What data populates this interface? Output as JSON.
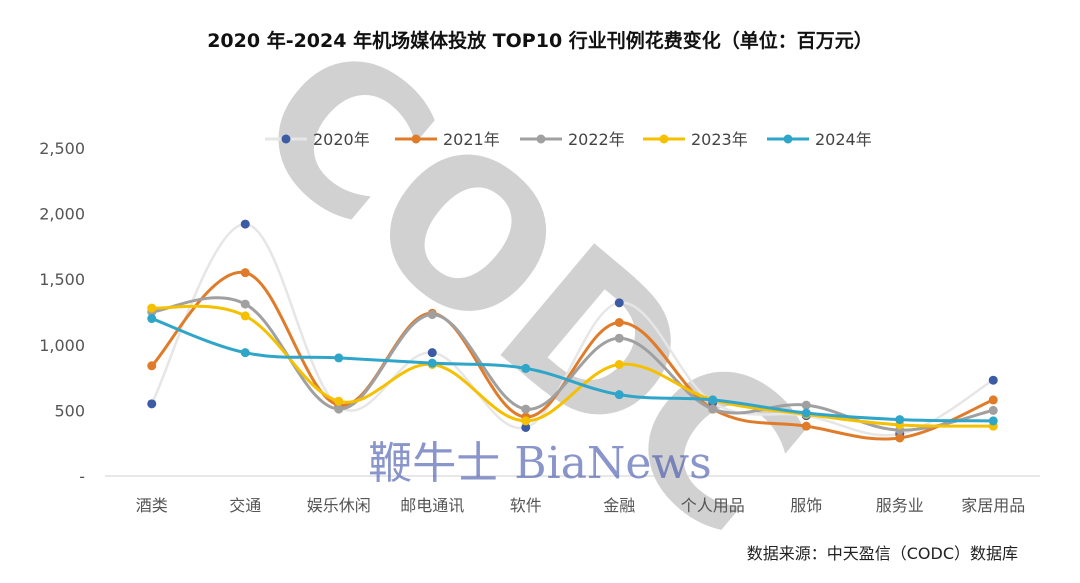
{
  "chart_title": "2020 年-2024 年机场媒体投放 TOP10 行业刊例花费变化（单位：百万元）",
  "source_note": "数据来源：中天盈信（CODC）数据库",
  "watermarks": {
    "codc": "CODC",
    "bianews": "鞭牛士 BiaNews"
  },
  "chart_data": {
    "type": "line",
    "title": "2020 年-2024 年机场媒体投放 TOP10 行业刊例花费变化（单位：百万元）",
    "xlabel": "",
    "ylabel": "",
    "ylim": [
      0,
      2500
    ],
    "y_ticks": [
      {
        "value": 0,
        "label": "-"
      },
      {
        "value": 500,
        "label": "500"
      },
      {
        "value": 1000,
        "label": "1,000"
      },
      {
        "value": 1500,
        "label": "1,500"
      },
      {
        "value": 2000,
        "label": "2,000"
      },
      {
        "value": 2500,
        "label": "2,500"
      }
    ],
    "grid": false,
    "legend_position": "top",
    "categories": [
      "酒类",
      "交通",
      "娱乐休闲",
      "邮电通讯",
      "软件",
      "金融",
      "个人用品",
      "服饰",
      "服务业",
      "家居用品"
    ],
    "series": [
      {
        "name": "2020年",
        "color": "#e6e6e6",
        "marker_color": "#3b5ba5",
        "values": [
          550,
          1920,
          530,
          940,
          370,
          1320,
          560,
          460,
          320,
          730
        ]
      },
      {
        "name": "2021年",
        "color": "#e07b2a",
        "marker_color": "#e07b2a",
        "values": [
          840,
          1550,
          540,
          1240,
          450,
          1170,
          510,
          380,
          290,
          580
        ]
      },
      {
        "name": "2022年",
        "color": "#a0a0a0",
        "marker_color": "#a0a0a0",
        "values": [
          1250,
          1310,
          510,
          1230,
          510,
          1050,
          510,
          540,
          350,
          500
        ]
      },
      {
        "name": "2023年",
        "color": "#f5c000",
        "marker_color": "#f5c000",
        "values": [
          1280,
          1220,
          570,
          850,
          420,
          850,
          580,
          470,
          390,
          380
        ]
      },
      {
        "name": "2024年",
        "color": "#2fa6c9",
        "marker_color": "#2fa6c9",
        "values": [
          1200,
          940,
          900,
          860,
          820,
          620,
          580,
          480,
          430,
          420
        ]
      }
    ]
  }
}
